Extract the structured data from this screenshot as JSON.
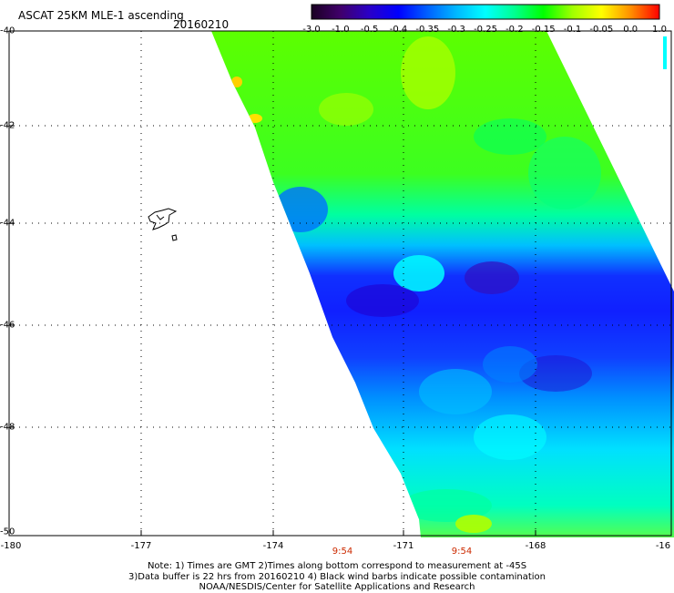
{
  "header": {
    "title": "ASCAT 25KM MLE-1 ascending",
    "date": "20160210"
  },
  "colorbar": {
    "labels": [
      "-3.0",
      "-1.0",
      "-0.5",
      "-0.4",
      "-0.35",
      "-0.3",
      "-0.25",
      "-0.2",
      "-0.15",
      "-0.1",
      "-0.05",
      "0.0",
      "1.0"
    ],
    "colors": [
      "#1a0022",
      "#40006b",
      "#2a00c8",
      "#0000ff",
      "#0060ff",
      "#00b8ff",
      "#00ffff",
      "#00ff90",
      "#00ff00",
      "#a0ff00",
      "#ffff00",
      "#ff9000",
      "#ff0000"
    ]
  },
  "axes": {
    "lat_labels": [
      "-40",
      "-42",
      "-44",
      "-46",
      "-48",
      "-50"
    ],
    "lon_labels": [
      "-180",
      "-177",
      "-174",
      "-171",
      "-168",
      "-16"
    ]
  },
  "times": [
    "9:54",
    "9:54"
  ],
  "notes": {
    "line1": "Note: 1) Times are GMT 2)Times along bottom correspond to measurement at -45S",
    "line2": "3)Data buffer is 22 hrs from 20160210 4) Black wind barbs indicate possible contamination",
    "line3": "NOAA/NESDIS/Center for Satellite Applications and Research"
  }
}
